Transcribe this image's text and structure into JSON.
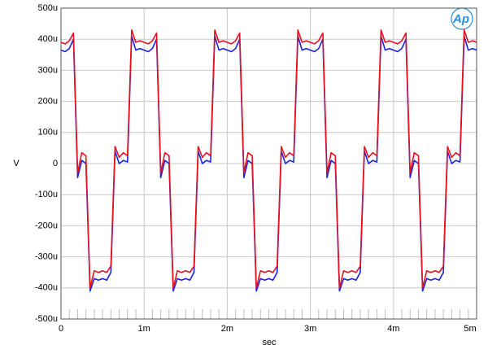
{
  "chart_data": {
    "type": "line",
    "xlabel": "sec",
    "ylabel": "V",
    "logo": "Ap",
    "xlim": [
      0,
      0.005
    ],
    "ylim": [
      -0.0005,
      0.0005
    ],
    "xticks": [
      0,
      {
        "value": 0.001,
        "label": "1m"
      },
      {
        "value": 0.002,
        "label": "2m"
      },
      {
        "value": 0.003,
        "label": "3m"
      },
      {
        "value": 0.004,
        "label": "4m"
      },
      {
        "value": 0.005,
        "label": "5m"
      }
    ],
    "yticks": [
      {
        "value": -0.0005,
        "label": "-500u"
      },
      {
        "value": -0.0004,
        "label": "-400u"
      },
      {
        "value": -0.0003,
        "label": "-300u"
      },
      {
        "value": -0.0002,
        "label": "-200u"
      },
      {
        "value": -0.0001,
        "label": "-100u"
      },
      0,
      {
        "value": 0.0001,
        "label": "100u"
      },
      {
        "value": 0.0002,
        "label": "200u"
      },
      {
        "value": 0.0003,
        "label": "300u"
      },
      {
        "value": 0.0004,
        "label": "400u"
      },
      {
        "value": 0.0005,
        "label": "500u"
      }
    ],
    "grid": true,
    "x": [
      0,
      5e-05,
      0.0001,
      0.00015,
      0.0002,
      0.00025,
      0.0003,
      0.00035,
      0.0004,
      0.00045,
      0.0005,
      0.00055,
      0.0006,
      0.00065,
      0.0007,
      0.00075,
      0.0008,
      0.00085,
      0.0009,
      0.00095,
      0.001,
      0.00105,
      0.0011,
      0.00115,
      0.0012,
      0.00125,
      0.0013,
      0.00135,
      0.0014,
      0.00145,
      0.0015,
      0.00155,
      0.0016,
      0.00165,
      0.0017,
      0.00175,
      0.0018,
      0.00185,
      0.0019,
      0.00195,
      0.002,
      0.00205,
      0.0021,
      0.00215,
      0.0022,
      0.00225,
      0.0023,
      0.00235,
      0.0024,
      0.00245,
      0.0025,
      0.00255,
      0.0026,
      0.00265,
      0.0027,
      0.00275,
      0.0028,
      0.00285,
      0.0029,
      0.00295,
      0.003,
      0.00305,
      0.0031,
      0.00315,
      0.0032,
      0.00325,
      0.0033,
      0.00335,
      0.0034,
      0.00345,
      0.0035,
      0.00355,
      0.0036,
      0.00365,
      0.0037,
      0.00375,
      0.0038,
      0.00385,
      0.0039,
      0.00395,
      0.004,
      0.00405,
      0.0041,
      0.00415,
      0.0042,
      0.00425,
      0.0043,
      0.00435,
      0.0044,
      0.00445,
      0.0045,
      0.00455,
      0.0046,
      0.00465,
      0.0047,
      0.00475,
      0.0048,
      0.00485,
      0.0049,
      0.00495,
      0.005
    ],
    "series": [
      {
        "color": "#e8101e",
        "values": [
          0.00039,
          0.000385,
          0.000395,
          0.00042,
          -3e-05,
          3.5e-05,
          2.5e-05,
          -0.0004,
          -0.000345,
          -0.00035,
          -0.000345,
          -0.00035,
          -0.00033,
          5.5e-05,
          2e-05,
          3.5e-05,
          2.5e-05,
          0.00043,
          0.00039,
          0.000395,
          0.00039,
          0.000385,
          0.000395,
          0.00042,
          -3e-05,
          3.5e-05,
          2.5e-05,
          -0.0004,
          -0.000345,
          -0.00035,
          -0.000345,
          -0.00035,
          -0.00033,
          5.5e-05,
          2e-05,
          3.5e-05,
          2.5e-05,
          0.00043,
          0.00039,
          0.000395,
          0.00039,
          0.000385,
          0.000395,
          0.00042,
          -3e-05,
          3.5e-05,
          2.5e-05,
          -0.0004,
          -0.000345,
          -0.00035,
          -0.000345,
          -0.00035,
          -0.00033,
          5.5e-05,
          2e-05,
          3.5e-05,
          2.5e-05,
          0.00043,
          0.00039,
          0.000395,
          0.00039,
          0.000385,
          0.000395,
          0.00042,
          -3e-05,
          3.5e-05,
          2.5e-05,
          -0.0004,
          -0.000345,
          -0.00035,
          -0.000345,
          -0.00035,
          -0.00033,
          5.5e-05,
          2e-05,
          3.5e-05,
          2.5e-05,
          0.00043,
          0.00039,
          0.000395,
          0.00039,
          0.000385,
          0.000395,
          0.00042,
          -3e-05,
          3.5e-05,
          2.5e-05,
          -0.0004,
          -0.000345,
          -0.00035,
          -0.000345,
          -0.00035,
          -0.00033,
          5.5e-05,
          2e-05,
          3.5e-05,
          2.5e-05,
          0.00043,
          0.00039,
          0.000395,
          0.00039
        ]
      },
      {
        "color": "#1a22e0",
        "values": [
          0.000365,
          0.00036,
          0.00037,
          0.0004,
          -4.5e-05,
          1e-05,
          0,
          -0.00041,
          -0.00037,
          -0.000375,
          -0.00037,
          -0.000375,
          -0.00035,
          4e-05,
          0,
          1e-05,
          5e-06,
          0.00041,
          0.000365,
          0.00037,
          0.000365,
          0.00036,
          0.00037,
          0.0004,
          -4.5e-05,
          1e-05,
          0,
          -0.00041,
          -0.00037,
          -0.000375,
          -0.00037,
          -0.000375,
          -0.00035,
          4e-05,
          0,
          1e-05,
          5e-06,
          0.00041,
          0.000365,
          0.00037,
          0.000365,
          0.00036,
          0.00037,
          0.0004,
          -4.5e-05,
          1e-05,
          0,
          -0.00041,
          -0.00037,
          -0.000375,
          -0.00037,
          -0.000375,
          -0.00035,
          4e-05,
          0,
          1e-05,
          5e-06,
          0.00041,
          0.000365,
          0.00037,
          0.000365,
          0.00036,
          0.00037,
          0.0004,
          -4.5e-05,
          1e-05,
          0,
          -0.00041,
          -0.00037,
          -0.000375,
          -0.00037,
          -0.000375,
          -0.00035,
          4e-05,
          0,
          1e-05,
          5e-06,
          0.00041,
          0.000365,
          0.00037,
          0.000365,
          0.00036,
          0.00037,
          0.0004,
          -4.5e-05,
          1e-05,
          0,
          -0.00041,
          -0.00037,
          -0.000375,
          -0.00037,
          -0.000375,
          -0.00035,
          4e-05,
          0,
          1e-05,
          5e-06,
          0.00041,
          0.000365,
          0.00037,
          0.000365
        ]
      }
    ]
  }
}
